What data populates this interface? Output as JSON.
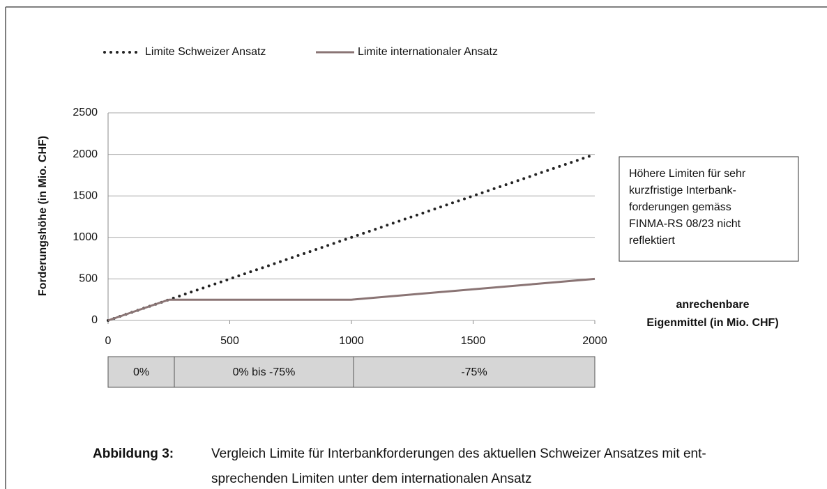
{
  "chart_data": {
    "type": "line",
    "legend": "top",
    "grid": true,
    "x": [
      0,
      250,
      1000,
      2000
    ],
    "series": [
      {
        "name": "Limite Schweizer Ansatz",
        "color": "#222222",
        "style": "dotted",
        "values": [
          0,
          250,
          1000,
          2000
        ]
      },
      {
        "name": "Limite internationaler Ansatz",
        "color": "#8a7474",
        "style": "solid",
        "values": [
          0,
          250,
          250,
          500
        ]
      }
    ],
    "xlim": [
      0,
      2000
    ],
    "xticks": [
      0,
      500,
      1000,
      1500,
      2000
    ],
    "ylim": [
      0,
      2500
    ],
    "yticks": [
      0,
      500,
      1000,
      1500,
      2000,
      2500
    ],
    "y_label": "Forderungshöhe (in Mio. CHF)",
    "x_label": [
      "anrechenbare",
      "Eigenmittel (in Mio. CHF)"
    ],
    "annotation": [
      "Höhere Limiten für sehr",
      "kurzfristige Interbank-",
      "forderungen gemäss",
      "FINMA-RS 08/23 nicht",
      "reflektiert"
    ],
    "bands": [
      "0%",
      "0% bis -75%",
      "-75%"
    ],
    "caption_label": "Abbildung 3:",
    "caption": [
      "Vergleich Limite für Interbankforderungen des aktuellen Schweizer Ansatzes mit ent-",
      "sprechenden Limiten unter dem internationalen Ansatz"
    ]
  }
}
